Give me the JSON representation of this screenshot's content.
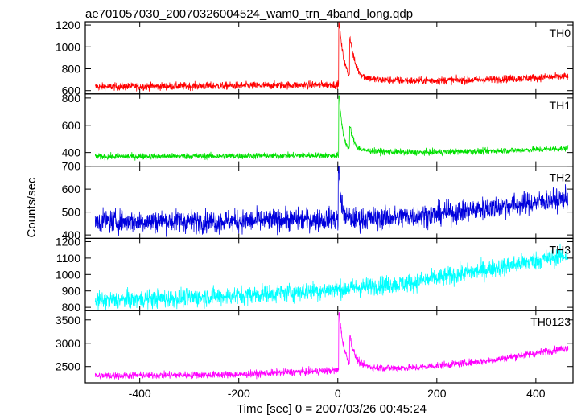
{
  "chart_data": {
    "type": "line",
    "title": "ae701057030_20070326004524_wam0_trn_4band_long.qdp",
    "xlabel": "Time [sec] 0 = 2007/03/26 00:45:24",
    "ylabel": "Counts/sec",
    "xlim": [
      -510,
      475
    ],
    "x_ticks": [
      -400,
      -200,
      0,
      200,
      400
    ],
    "x_range_data": [
      -490,
      465
    ],
    "panels": [
      {
        "name": "TH0",
        "color": "#ff0000",
        "ylim": [
          570,
          1230
        ],
        "y_ticks": [
          600,
          800,
          1000,
          1200
        ],
        "baseline": [
          [
            -490,
            635
          ],
          [
            -200,
            645
          ],
          [
            0,
            655
          ],
          [
            60,
            700
          ],
          [
            150,
            690
          ],
          [
            300,
            700
          ],
          [
            465,
            730
          ]
        ],
        "noise": 25,
        "burst": [
          {
            "t": 3,
            "peak": 1220,
            "decay": 10
          },
          {
            "t": 25,
            "peak": 1020,
            "decay": 12
          }
        ]
      },
      {
        "name": "TH1",
        "color": "#00e000",
        "ylim": [
          300,
          830
        ],
        "y_ticks": [
          400,
          600,
          800
        ],
        "baseline": [
          [
            -490,
            370
          ],
          [
            -200,
            375
          ],
          [
            0,
            380
          ],
          [
            60,
            410
          ],
          [
            150,
            400
          ],
          [
            300,
            410
          ],
          [
            465,
            430
          ]
        ],
        "noise": 16,
        "burst": [
          {
            "t": 3,
            "peak": 810,
            "decay": 8
          },
          {
            "t": 25,
            "peak": 560,
            "decay": 10
          }
        ]
      },
      {
        "name": "TH2",
        "color": "#0000dd",
        "ylim": [
          385,
          700
        ],
        "y_ticks": [
          400,
          500,
          600,
          700
        ],
        "baseline": [
          [
            -490,
            460
          ],
          [
            -200,
            460
          ],
          [
            0,
            470
          ],
          [
            60,
            470
          ],
          [
            200,
            490
          ],
          [
            350,
            530
          ],
          [
            465,
            560
          ]
        ],
        "noise": 35,
        "burst": [
          {
            "t": 2,
            "peak": 690,
            "decay": 5
          }
        ]
      },
      {
        "name": "TH3",
        "color": "#00ffff",
        "ylim": [
          780,
          1220
        ],
        "y_ticks": [
          800,
          900,
          1000,
          1100,
          1200
        ],
        "baseline": [
          [
            -490,
            840
          ],
          [
            -200,
            870
          ],
          [
            0,
            910
          ],
          [
            150,
            950
          ],
          [
            300,
            1030
          ],
          [
            465,
            1120
          ]
        ],
        "noise": 40,
        "burst": []
      },
      {
        "name": "TH0123",
        "color": "#ff00ff",
        "ylim": [
          2150,
          3700
        ],
        "y_ticks": [
          2500,
          3000,
          3500
        ],
        "baseline": [
          [
            -490,
            2300
          ],
          [
            -200,
            2330
          ],
          [
            0,
            2420
          ],
          [
            60,
            2470
          ],
          [
            150,
            2470
          ],
          [
            300,
            2620
          ],
          [
            465,
            2900
          ]
        ],
        "noise": 55,
        "burst": [
          {
            "t": 3,
            "peak": 3650,
            "decay": 10
          },
          {
            "t": 25,
            "peak": 3000,
            "decay": 12
          }
        ]
      }
    ]
  }
}
